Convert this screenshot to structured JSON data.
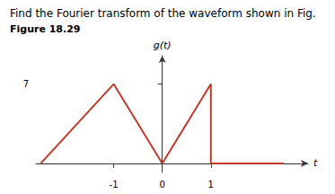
{
  "chart_data": {
    "type": "line",
    "title": "Find the Fourier transform of the waveform shown in Fig.",
    "subtitle": "Figure 18.29",
    "x": [
      -2.5,
      -1.0,
      0.0,
      1.0,
      1.0,
      2.5
    ],
    "values": [
      0,
      7,
      0,
      7,
      0,
      0
    ],
    "color": "#c0392b",
    "xlabel": "t",
    "ylabel": "g(t)",
    "xlim": [
      -2.6,
      3.0
    ],
    "ylim": [
      -0.8,
      9.5
    ],
    "xticks": [
      -1,
      0,
      1
    ],
    "yticks": [
      7
    ],
    "grid": false
  }
}
